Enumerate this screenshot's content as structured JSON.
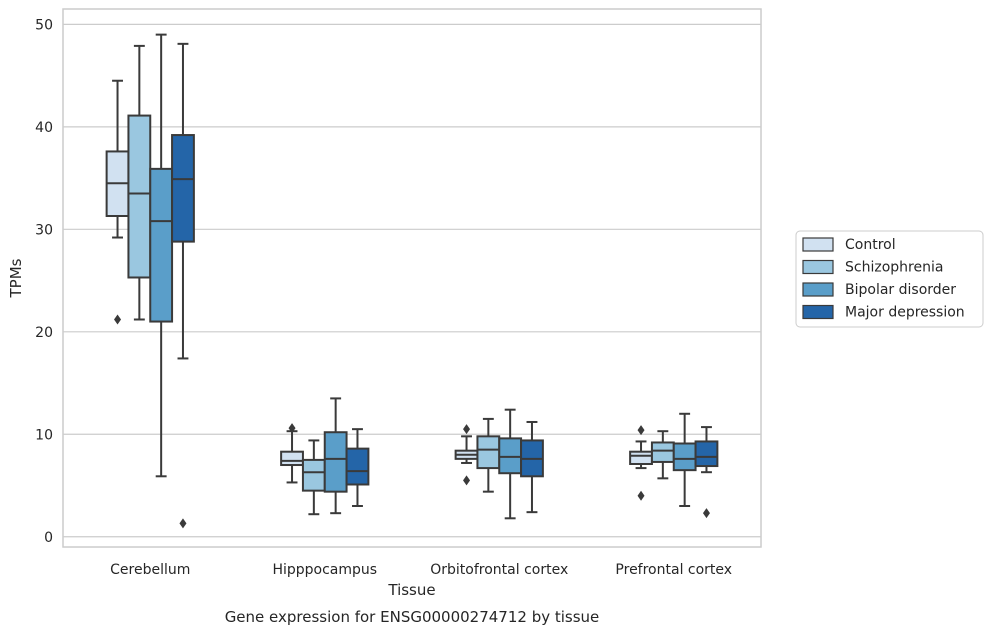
{
  "chart_data": {
    "type": "box",
    "xlabel": "Tissue",
    "ylabel": "TPMs",
    "caption": "Gene expression for ENSG00000274712 by tissue",
    "ylim": [
      -1,
      51.5
    ],
    "yticks": [
      0,
      10,
      20,
      30,
      40,
      50
    ],
    "grid": true,
    "legend_position": "right",
    "categories": [
      "Cerebellum",
      "Hipppocampus",
      "Orbitofrontal cortex",
      "Prefrontal cortex"
    ],
    "series": [
      {
        "name": "Control",
        "color": "#d1e1f1",
        "boxes": [
          {
            "whisker_low": 29.2,
            "q1": 31.3,
            "median": 34.5,
            "q3": 37.6,
            "whisker_high": 44.5,
            "outliers": [
              21.2
            ]
          },
          {
            "whisker_low": 5.3,
            "q1": 7.0,
            "median": 7.4,
            "q3": 8.3,
            "whisker_high": 10.3,
            "outliers": [
              10.6
            ]
          },
          {
            "whisker_low": 7.2,
            "q1": 7.6,
            "median": 8.0,
            "q3": 8.4,
            "whisker_high": 9.8,
            "outliers": [
              10.5,
              5.5
            ]
          },
          {
            "whisker_low": 6.7,
            "q1": 7.1,
            "median": 7.9,
            "q3": 8.3,
            "whisker_high": 9.3,
            "outliers": [
              10.4,
              4.0
            ]
          }
        ]
      },
      {
        "name": "Schizophrenia",
        "color": "#9ac7e0",
        "boxes": [
          {
            "whisker_low": 21.2,
            "q1": 25.3,
            "median": 33.5,
            "q3": 41.1,
            "whisker_high": 47.9,
            "outliers": []
          },
          {
            "whisker_low": 2.2,
            "q1": 4.5,
            "median": 6.3,
            "q3": 7.5,
            "whisker_high": 9.4,
            "outliers": []
          },
          {
            "whisker_low": 4.4,
            "q1": 6.7,
            "median": 8.5,
            "q3": 9.8,
            "whisker_high": 11.5,
            "outliers": []
          },
          {
            "whisker_low": 5.7,
            "q1": 7.3,
            "median": 8.4,
            "q3": 9.2,
            "whisker_high": 10.3,
            "outliers": []
          }
        ]
      },
      {
        "name": "Bipolar disorder",
        "color": "#5a9ec9",
        "boxes": [
          {
            "whisker_low": 5.9,
            "q1": 21.0,
            "median": 30.8,
            "q3": 35.9,
            "whisker_high": 49.0,
            "outliers": []
          },
          {
            "whisker_low": 2.3,
            "q1": 4.4,
            "median": 7.6,
            "q3": 10.2,
            "whisker_high": 13.5,
            "outliers": []
          },
          {
            "whisker_low": 1.8,
            "q1": 6.2,
            "median": 7.8,
            "q3": 9.6,
            "whisker_high": 12.4,
            "outliers": []
          },
          {
            "whisker_low": 3.0,
            "q1": 6.5,
            "median": 7.6,
            "q3": 9.1,
            "whisker_high": 12.0,
            "outliers": []
          }
        ]
      },
      {
        "name": "Major depression",
        "color": "#2465a8",
        "boxes": [
          {
            "whisker_low": 17.4,
            "q1": 28.8,
            "median": 34.9,
            "q3": 39.2,
            "whisker_high": 48.1,
            "outliers": [
              1.3
            ]
          },
          {
            "whisker_low": 3.0,
            "q1": 5.1,
            "median": 6.4,
            "q3": 8.6,
            "whisker_high": 10.5,
            "outliers": []
          },
          {
            "whisker_low": 2.4,
            "q1": 5.9,
            "median": 7.6,
            "q3": 9.4,
            "whisker_high": 11.2,
            "outliers": []
          },
          {
            "whisker_low": 6.3,
            "q1": 6.9,
            "median": 7.8,
            "q3": 9.3,
            "whisker_high": 10.7,
            "outliers": [
              2.3
            ]
          }
        ]
      }
    ]
  }
}
